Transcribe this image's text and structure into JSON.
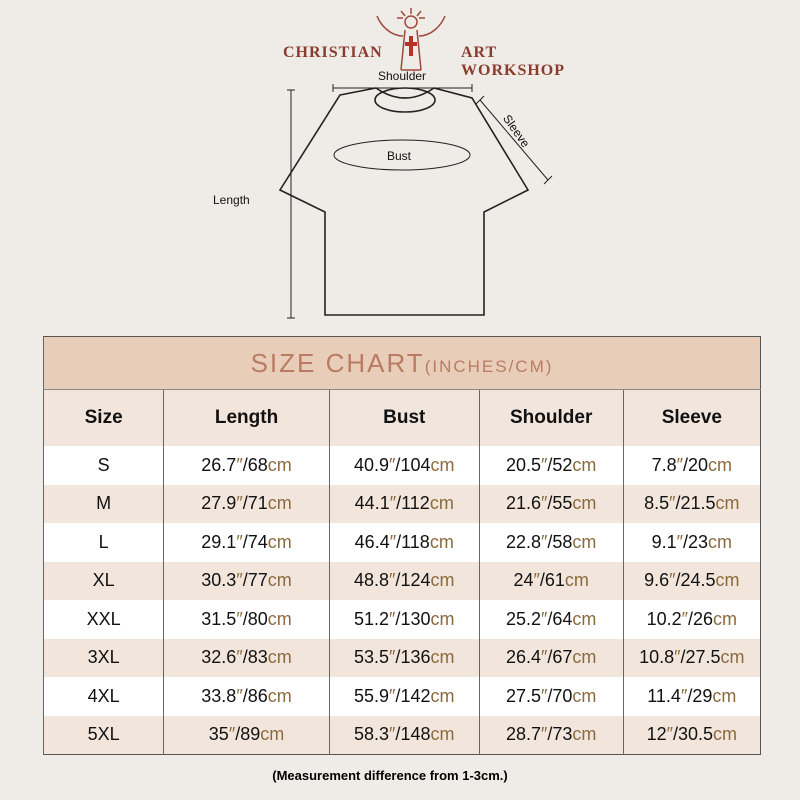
{
  "brand": {
    "left": "CHRISTIAN",
    "right": "ART WORKSHOP"
  },
  "diagram": {
    "shoulder": "Shoulder",
    "sleeve": "Sleeve",
    "bust": "Bust",
    "length": "Length"
  },
  "table": {
    "title": "SIZE CHART",
    "title_units": "(INCHES/CM)",
    "headers": [
      "Size",
      "Length",
      "Bust",
      "Shoulder",
      "Sleeve"
    ],
    "inch_mark": "″",
    "cm_unit": "cm",
    "rows": [
      {
        "size": "S",
        "cells": [
          [
            "26.7",
            "68"
          ],
          [
            "40.9",
            "104"
          ],
          [
            "20.5",
            "52"
          ],
          [
            "7.8",
            "20"
          ]
        ]
      },
      {
        "size": "M",
        "cells": [
          [
            "27.9",
            "71"
          ],
          [
            "44.1",
            "112"
          ],
          [
            "21.6",
            "55"
          ],
          [
            "8.5",
            "21.5"
          ]
        ]
      },
      {
        "size": "L",
        "cells": [
          [
            "29.1",
            "74"
          ],
          [
            "46.4",
            "118"
          ],
          [
            "22.8",
            "58"
          ],
          [
            "9.1",
            "23"
          ]
        ]
      },
      {
        "size": "XL",
        "cells": [
          [
            "30.3",
            "77"
          ],
          [
            "48.8",
            "124"
          ],
          [
            "24",
            "61"
          ],
          [
            "9.6",
            "24.5"
          ]
        ]
      },
      {
        "size": "XXL",
        "cells": [
          [
            "31.5",
            "80"
          ],
          [
            "51.2",
            "130"
          ],
          [
            "25.2",
            "64"
          ],
          [
            "10.2",
            "26"
          ]
        ]
      },
      {
        "size": "3XL",
        "cells": [
          [
            "32.6",
            "83"
          ],
          [
            "53.5",
            "136"
          ],
          [
            "26.4",
            "67"
          ],
          [
            "10.8",
            "27.5"
          ]
        ]
      },
      {
        "size": "4XL",
        "cells": [
          [
            "33.8",
            "86"
          ],
          [
            "55.9",
            "142"
          ],
          [
            "27.5",
            "70"
          ],
          [
            "11.4",
            "29"
          ]
        ]
      },
      {
        "size": "5XL",
        "cells": [
          [
            "35",
            "89"
          ],
          [
            "58.3",
            "148"
          ],
          [
            "28.7",
            "73"
          ],
          [
            "12",
            "30.5"
          ]
        ]
      }
    ]
  },
  "note": "(Measurement difference from 1-3cm.)",
  "colors": {
    "header_bg": "#e8cdb9",
    "title": "#b97c63",
    "alt_row": "#f2e6dc",
    "unit": "#8b6a3e",
    "brand": "#8a3b2e"
  }
}
